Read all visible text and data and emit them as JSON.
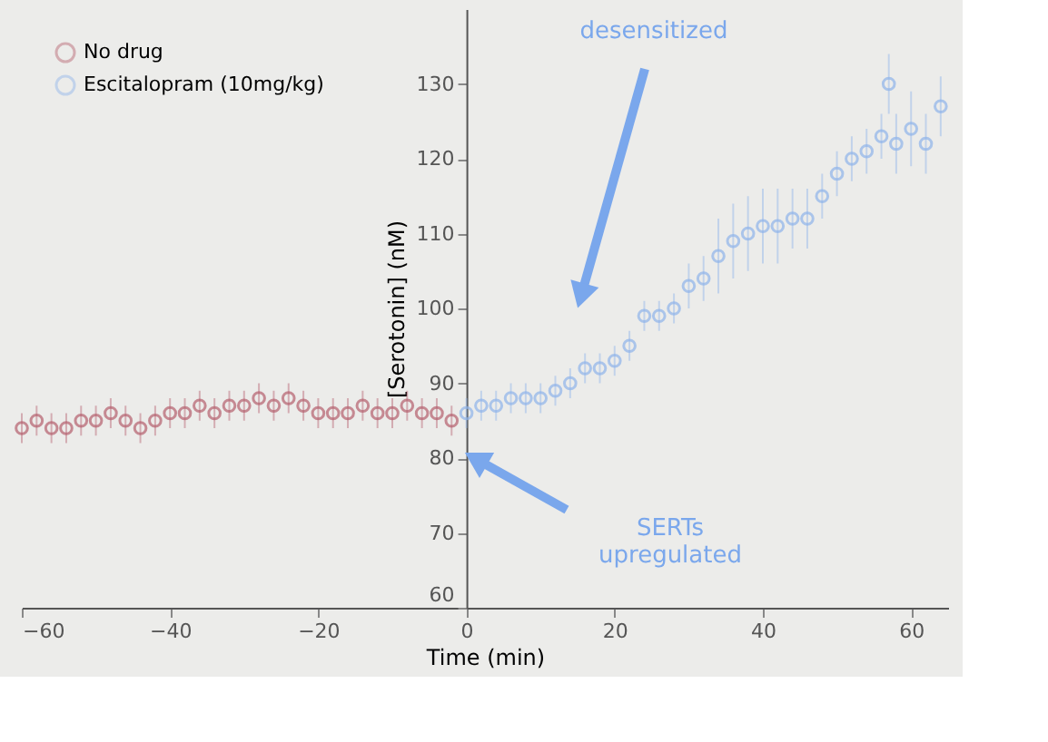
{
  "chart_data": {
    "type": "scatter",
    "xlabel": "Time (min)",
    "ylabel": "[Serotonin] (nM)",
    "xlim": [
      -60,
      65
    ],
    "xticks": [
      -60,
      -40,
      -20,
      0,
      20,
      40,
      60
    ],
    "ylim": [
      60,
      140
    ],
    "yticks": [
      60,
      70,
      80,
      90,
      100,
      110,
      120,
      130
    ],
    "marker": "circle",
    "legend": "top left",
    "grid": false,
    "series": [
      {
        "name": "No drug",
        "color": "#b5606e",
        "x": [
          -60,
          -58,
          -56,
          -54,
          -52,
          -50,
          -48,
          -46,
          -44,
          -42,
          -40,
          -38,
          -36,
          -34,
          -32,
          -30,
          -28,
          -26,
          -24,
          -22,
          -20,
          -18,
          -16,
          -14,
          -12,
          -10,
          -8,
          -6,
          -4,
          -2
        ],
        "values": [
          84,
          85,
          84,
          84,
          85,
          85,
          86,
          85,
          84,
          85,
          86,
          86,
          87,
          86,
          87,
          87,
          88,
          87,
          88,
          87,
          86,
          86,
          86,
          87,
          86,
          86,
          87,
          86,
          86,
          85
        ],
        "errors": [
          2,
          2,
          2,
          2,
          2,
          2,
          2,
          2,
          2,
          2,
          2,
          2,
          2,
          2,
          2,
          2,
          2,
          2,
          2,
          2,
          2,
          2,
          2,
          2,
          2,
          2,
          2,
          2,
          2,
          2
        ]
      },
      {
        "name": "Escitalopram (10mg/kg)",
        "color": "#8fb4ea",
        "x": [
          0,
          2,
          4,
          6,
          8,
          10,
          12,
          14,
          16,
          18,
          20,
          22,
          24,
          26,
          28,
          30,
          32,
          34,
          36,
          38,
          40,
          42,
          44,
          46,
          48,
          50,
          52,
          54,
          56,
          57,
          58,
          60,
          62,
          64
        ],
        "values": [
          86,
          87,
          87,
          88,
          88,
          88,
          89,
          90,
          92,
          92,
          93,
          95,
          99,
          99,
          100,
          103,
          104,
          107,
          109,
          110,
          111,
          111,
          112,
          112,
          115,
          118,
          120,
          121,
          123,
          130,
          122,
          124,
          122,
          127
        ],
        "errors": [
          2,
          2,
          2,
          2,
          2,
          2,
          2,
          2,
          2,
          2,
          2,
          2,
          2,
          2,
          2,
          3,
          3,
          5,
          5,
          5,
          5,
          5,
          4,
          4,
          3,
          3,
          3,
          3,
          3,
          4,
          4,
          5,
          4,
          4
        ]
      }
    ],
    "annotations": [
      "desensitized",
      "SERTs upregulated"
    ]
  }
}
